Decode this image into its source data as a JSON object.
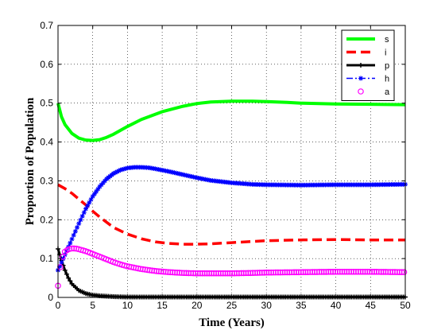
{
  "chart_data": {
    "type": "line",
    "xlabel": "Time (Years)",
    "ylabel": "Proportion of Population",
    "xlim": [
      0,
      50
    ],
    "ylim": [
      0,
      0.7
    ],
    "xticks": [
      "0",
      "5",
      "10",
      "15",
      "20",
      "25",
      "30",
      "35",
      "40",
      "45",
      "50"
    ],
    "yticks": [
      "0",
      "0.1",
      "0.2",
      "0.3",
      "0.4",
      "0.5",
      "0.6",
      "0.7"
    ],
    "grid": true,
    "legend_position": "top-right",
    "series": [
      {
        "name": "s",
        "color": "#00ff00",
        "style": "solid-thick",
        "x": [
          0,
          0.5,
          1,
          2,
          3,
          4,
          5,
          6,
          7,
          8,
          10,
          12,
          15,
          18,
          20,
          22,
          25,
          28,
          30,
          33,
          35,
          40,
          45,
          50
        ],
        "y": [
          0.5,
          0.465,
          0.445,
          0.422,
          0.41,
          0.405,
          0.404,
          0.406,
          0.412,
          0.42,
          0.44,
          0.458,
          0.478,
          0.492,
          0.499,
          0.503,
          0.505,
          0.505,
          0.504,
          0.502,
          0.5,
          0.498,
          0.497,
          0.496
        ]
      },
      {
        "name": "i",
        "color": "#ff0000",
        "style": "dashed-thick",
        "x": [
          0,
          1,
          2,
          3,
          4,
          5,
          6,
          8,
          10,
          12,
          14,
          16,
          18,
          20,
          22,
          25,
          28,
          30,
          35,
          40,
          45,
          50
        ],
        "y": [
          0.29,
          0.28,
          0.268,
          0.253,
          0.238,
          0.222,
          0.207,
          0.18,
          0.163,
          0.151,
          0.143,
          0.139,
          0.137,
          0.137,
          0.138,
          0.141,
          0.144,
          0.146,
          0.148,
          0.149,
          0.148,
          0.148
        ]
      },
      {
        "name": "p",
        "color": "#000000",
        "style": "solid-plus",
        "x": [
          0,
          0.5,
          1,
          1.5,
          2,
          3,
          4,
          5,
          6,
          8,
          10,
          15,
          20,
          30,
          40,
          50
        ],
        "y": [
          0.125,
          0.095,
          0.07,
          0.05,
          0.035,
          0.018,
          0.01,
          0.006,
          0.004,
          0.002,
          0.001,
          0.001,
          0.001,
          0.001,
          0.001,
          0.001
        ]
      },
      {
        "name": "h",
        "color": "#0000ff",
        "style": "dashdot-star",
        "x": [
          0,
          1,
          2,
          3,
          4,
          5,
          6,
          7,
          8,
          9,
          10,
          11,
          12,
          13,
          14,
          16,
          18,
          20,
          22,
          25,
          28,
          30,
          35,
          40,
          45,
          50
        ],
        "y": [
          0.07,
          0.11,
          0.15,
          0.19,
          0.228,
          0.26,
          0.285,
          0.305,
          0.319,
          0.328,
          0.333,
          0.335,
          0.335,
          0.334,
          0.331,
          0.324,
          0.316,
          0.308,
          0.301,
          0.295,
          0.291,
          0.29,
          0.289,
          0.29,
          0.29,
          0.291
        ]
      },
      {
        "name": "a",
        "color": "#ff00ff",
        "style": "circles",
        "x": [
          0,
          0.25,
          0.5,
          0.75,
          1,
          1.5,
          2,
          2.5,
          3,
          4,
          5,
          6,
          7,
          8,
          9,
          10,
          12,
          14,
          16,
          18,
          20,
          22,
          25,
          28,
          30,
          35,
          40,
          45,
          50
        ],
        "y": [
          0.03,
          0.07,
          0.095,
          0.11,
          0.118,
          0.124,
          0.126,
          0.126,
          0.124,
          0.119,
          0.112,
          0.105,
          0.098,
          0.091,
          0.085,
          0.08,
          0.073,
          0.068,
          0.065,
          0.063,
          0.062,
          0.062,
          0.062,
          0.063,
          0.064,
          0.065,
          0.066,
          0.066,
          0.065
        ]
      }
    ]
  }
}
